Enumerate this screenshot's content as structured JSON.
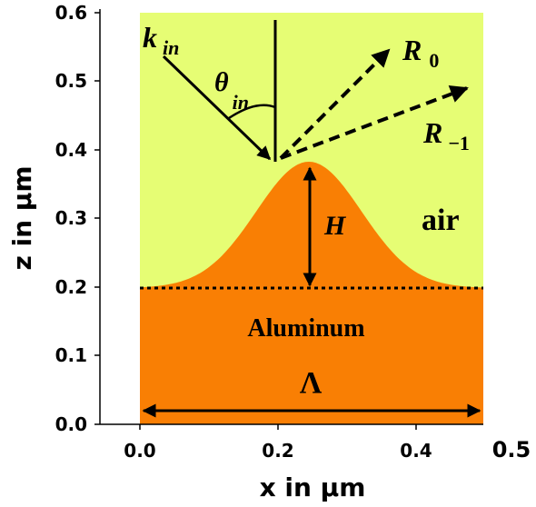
{
  "figure": {
    "x_axis_title": "x in µm",
    "y_axis_title": "z in µm",
    "x_ticks": [
      "0.0",
      "0.2",
      "0.4",
      "0.5"
    ],
    "y_ticks": [
      "0.0",
      "0.1",
      "0.2",
      "0.3",
      "0.4",
      "0.5",
      "0.6"
    ]
  },
  "labels": {
    "k_main": "k",
    "k_sub": "in",
    "theta_main": "θ",
    "theta_sub": "in",
    "r0_main": "R",
    "r0_sub": "0",
    "rm1_main": "R",
    "rm1_sub": "−1",
    "height": "H",
    "air": "air",
    "material": "Aluminum",
    "period": "Λ"
  },
  "colors": {
    "air": "#e6fd74",
    "aluminum": "#f97f04",
    "axis": "#000000"
  }
}
